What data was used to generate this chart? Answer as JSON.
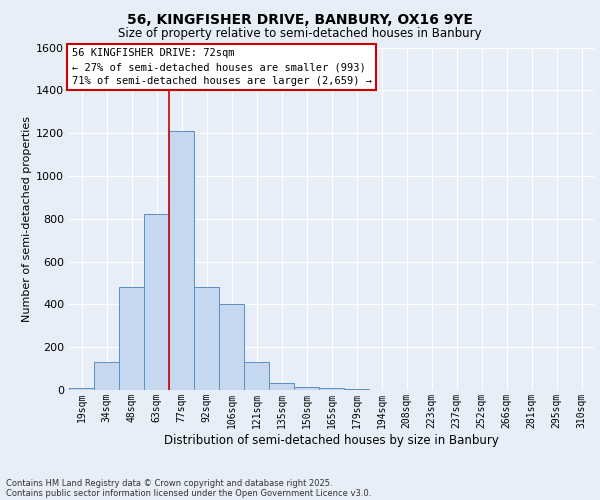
{
  "title_line1": "56, KINGFISHER DRIVE, BANBURY, OX16 9YE",
  "title_line2": "Size of property relative to semi-detached houses in Banbury",
  "xlabel": "Distribution of semi-detached houses by size in Banbury",
  "ylabel": "Number of semi-detached properties",
  "categories": [
    "19sqm",
    "34sqm",
    "48sqm",
    "63sqm",
    "77sqm",
    "92sqm",
    "106sqm",
    "121sqm",
    "135sqm",
    "150sqm",
    "165sqm",
    "179sqm",
    "194sqm",
    "208sqm",
    "223sqm",
    "237sqm",
    "252sqm",
    "266sqm",
    "281sqm",
    "295sqm",
    "310sqm"
  ],
  "values": [
    10,
    130,
    480,
    820,
    1210,
    480,
    400,
    130,
    35,
    15,
    10,
    5,
    2,
    0,
    0,
    0,
    0,
    0,
    0,
    0,
    0
  ],
  "bar_color": "#c5d8ef",
  "bar_edge_color": "#5a8fc2",
  "annotation_title": "56 KINGFISHER DRIVE: 72sqm",
  "annotation_line1": "← 27% of semi-detached houses are smaller (993)",
  "annotation_line2": "71% of semi-detached houses are larger (2,659) →",
  "annotation_box_facecolor": "#ffffff",
  "annotation_box_edgecolor": "#cc0000",
  "vline_color": "#cc0000",
  "vline_x": 3.5,
  "ylim": [
    0,
    1600
  ],
  "yticks": [
    0,
    200,
    400,
    600,
    800,
    1000,
    1200,
    1400,
    1600
  ],
  "footnote1": "Contains HM Land Registry data © Crown copyright and database right 2025.",
  "footnote2": "Contains public sector information licensed under the Open Government Licence v3.0.",
  "bg_color": "#e8eef7",
  "grid_color": "#ffffff",
  "title1_fontsize": 10,
  "title2_fontsize": 8.5,
  "ylabel_fontsize": 8,
  "xlabel_fontsize": 8.5,
  "tick_fontsize": 7,
  "annot_fontsize": 7.5,
  "footnote_fontsize": 6
}
